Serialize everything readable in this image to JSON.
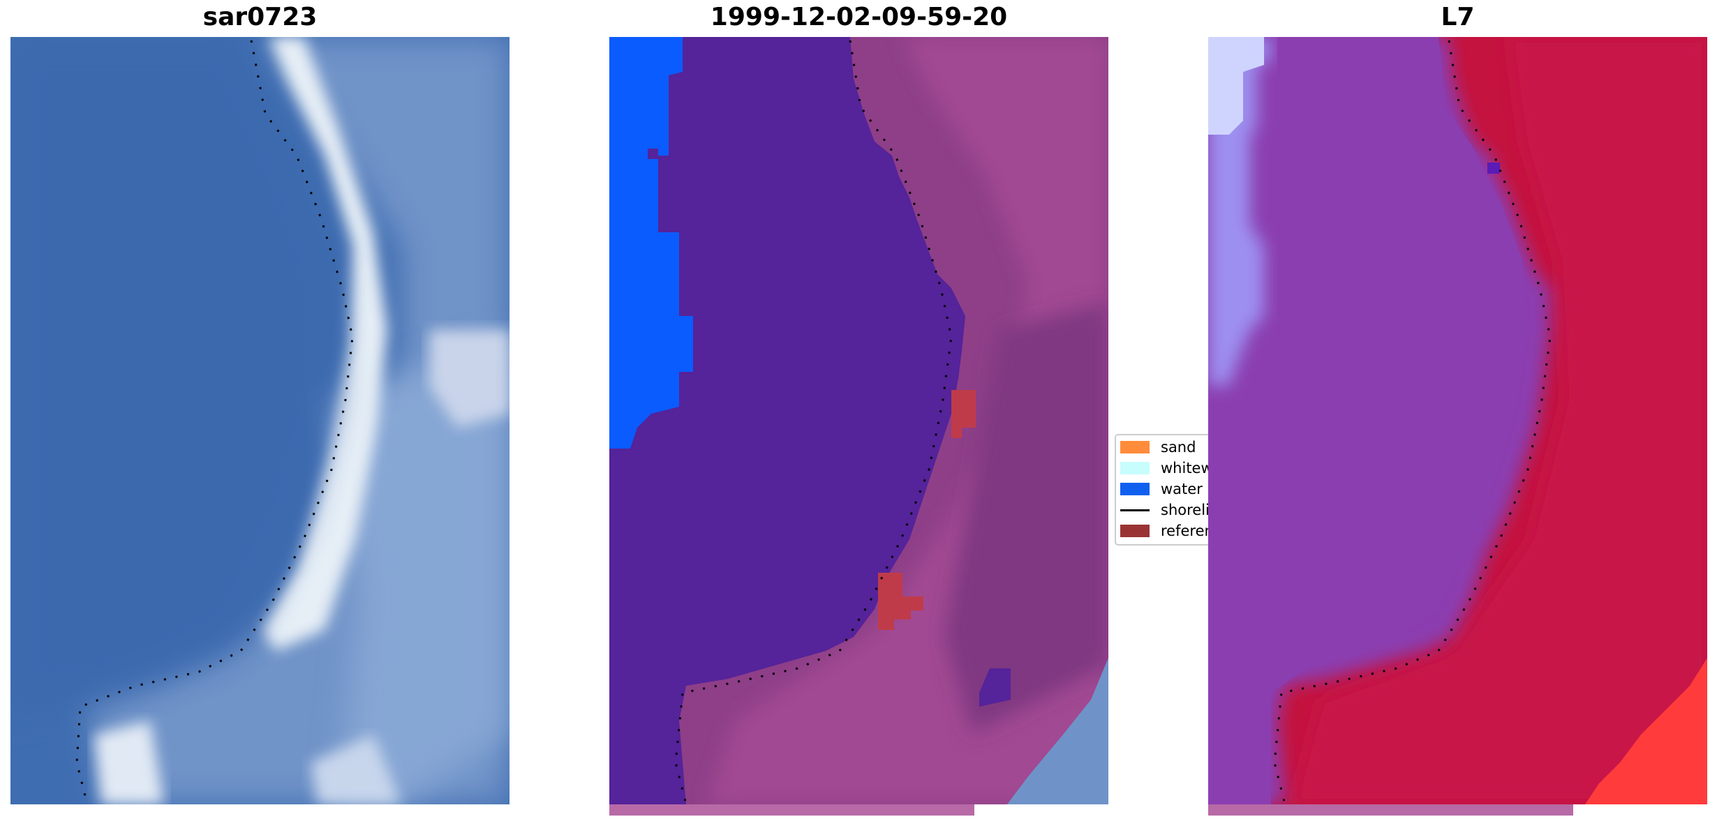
{
  "panels": [
    {
      "title": "sar0723"
    },
    {
      "title": "1999-12-02-09-59-20"
    },
    {
      "title": "L7"
    }
  ],
  "legend": {
    "items": [
      {
        "label": "sand",
        "color": "#ff8c3a"
      },
      {
        "label": "whitewater",
        "color": "#c8fdfd"
      },
      {
        "label": "water",
        "color": "#1060f0"
      },
      {
        "label": "shoreline",
        "color": "#000000"
      },
      {
        "label": "reference shoreline",
        "color": "#9a3434"
      }
    ]
  },
  "colors": {
    "rgb_water": "#3d6eb4",
    "rgb_beach": "#dde8f2",
    "class_water": "#55239a",
    "class_land": "#8e3f88",
    "class_open_water": "#0a5cff",
    "class_reference": "#c03b4a",
    "ndwi_water": "#8b3eb0",
    "ndwi_land": "#c4133e",
    "ndwi_edge": "#cfd4ff",
    "stripe": "#b76aa6"
  }
}
